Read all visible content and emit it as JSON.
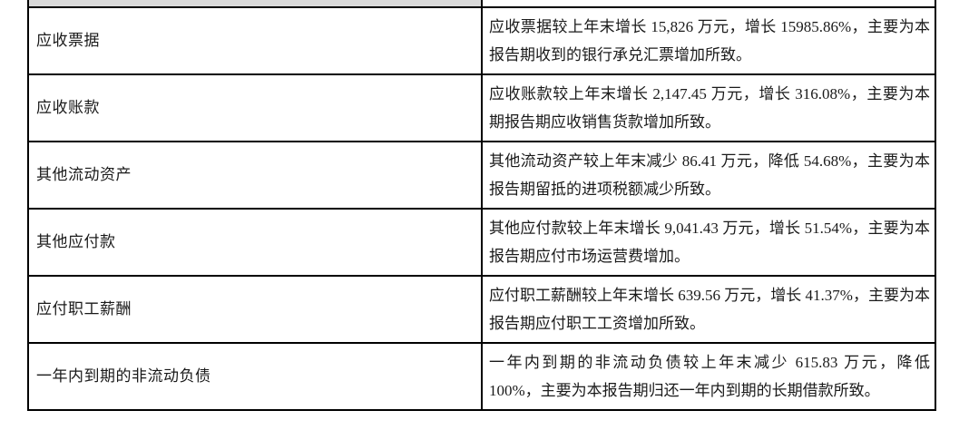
{
  "table": {
    "colors": {
      "border": "#000000",
      "header_shade": "#d9d9d9",
      "text": "#1a1a1a",
      "background": "#ffffff"
    },
    "columns": [
      {
        "name": "item"
      },
      {
        "name": "description"
      }
    ],
    "rows": [
      {
        "item": "应收票据",
        "description": "应收票据较上年末增长 15,826 万元，增长 15985.86%，主要为本报告期收到的银行承兑汇票增加所致。"
      },
      {
        "item": "应收账款",
        "description": "应收账款较上年末增长 2,147.45 万元，增长 316.08%，主要为本期报告期应收销售货款增加所致。"
      },
      {
        "item": "其他流动资产",
        "description": "其他流动资产较上年末减少 86.41 万元，降低 54.68%，主要为本报告期留抵的进项税额减少所致。"
      },
      {
        "item": "其他应付款",
        "description": "其他应付款较上年末增长 9,041.43 万元，增长 51.54%，主要为本报告期应付市场运营费增加。"
      },
      {
        "item": "应付职工薪酬",
        "description": "应付职工薪酬较上年末增长 639.56 万元，增长 41.37%，主要为本报告期应付职工工资增加所致。"
      },
      {
        "item": "一年内到期的非流动负债",
        "description": "一年内到期的非流动负债较上年末减少 615.83 万元，降低 100%，主要为本报告期归还一年内到期的长期借款所致。"
      }
    ]
  }
}
